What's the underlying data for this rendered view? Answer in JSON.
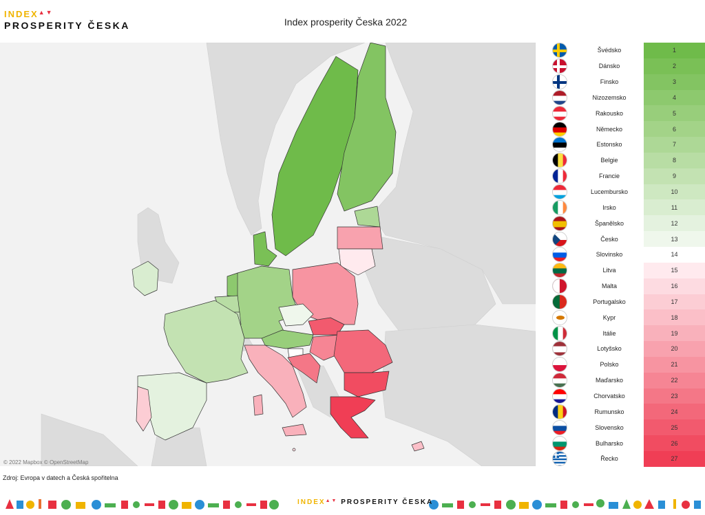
{
  "logo": {
    "line1": "INDEX",
    "line2": "PROSPERITY ČESKA"
  },
  "title": "Index prosperity Česka 2022",
  "map_attribution": "© 2022 Mapbox © OpenStreetMap",
  "source": "Zdroj: Evropa v datech a Česká spořitelna",
  "colors": {
    "best": "#6dbb4a",
    "neutral": "#ffffff",
    "worst": "#f24058",
    "nonEU": "#dcdcdc",
    "sea": "#f2f2f2"
  },
  "ranking": [
    {
      "country": "Švédsko",
      "rank": 1,
      "color": "#6fbb4a",
      "flag": "se"
    },
    {
      "country": "Dánsko",
      "rank": 2,
      "color": "#7ac056",
      "flag": "dk"
    },
    {
      "country": "Finsko",
      "rank": 3,
      "color": "#83c462",
      "flag": "fi"
    },
    {
      "country": "Nizozemsko",
      "rank": 4,
      "color": "#8dc96e",
      "flag": "nl"
    },
    {
      "country": "Rakousko",
      "rank": 5,
      "color": "#98ce7b",
      "flag": "at"
    },
    {
      "country": "Německo",
      "rank": 6,
      "color": "#a3d388",
      "flag": "de"
    },
    {
      "country": "Estonsko",
      "rank": 7,
      "color": "#add896",
      "flag": "ee"
    },
    {
      "country": "Belgie",
      "rank": 8,
      "color": "#b8dda4",
      "flag": "be"
    },
    {
      "country": "Francie",
      "rank": 9,
      "color": "#c3e2b2",
      "flag": "fr"
    },
    {
      "country": "Lucembursko",
      "rank": 10,
      "color": "#cee8c1",
      "flag": "lu"
    },
    {
      "country": "Irsko",
      "rank": 11,
      "color": "#d9edd0",
      "flag": "ie"
    },
    {
      "country": "Španělsko",
      "rank": 12,
      "color": "#e4f2df",
      "flag": "es"
    },
    {
      "country": "Česko",
      "rank": 13,
      "color": "#eff7ec",
      "flag": "cz"
    },
    {
      "country": "Slovinsko",
      "rank": 14,
      "color": "#ffffff",
      "flag": "si"
    },
    {
      "country": "Litva",
      "rank": 15,
      "color": "#ffeaee",
      "flag": "lt"
    },
    {
      "country": "Malta",
      "rank": 16,
      "color": "#fddbe1",
      "flag": "mt"
    },
    {
      "country": "Portugalsko",
      "rank": 17,
      "color": "#fccdd4",
      "flag": "pt"
    },
    {
      "country": "Kypr",
      "rank": 18,
      "color": "#fbbfc8",
      "flag": "cy"
    },
    {
      "country": "Itálie",
      "rank": 19,
      "color": "#f9b1bb",
      "flag": "it"
    },
    {
      "country": "Lotyšsko",
      "rank": 20,
      "color": "#f8a2ae",
      "flag": "lv"
    },
    {
      "country": "Polsko",
      "rank": 21,
      "color": "#f794a1",
      "flag": "pl"
    },
    {
      "country": "Maďarsko",
      "rank": 22,
      "color": "#f68594",
      "flag": "hu"
    },
    {
      "country": "Chorvatsko",
      "rank": 23,
      "color": "#f47787",
      "flag": "hr"
    },
    {
      "country": "Rumunsko",
      "rank": 24,
      "color": "#f3687a",
      "flag": "ro"
    },
    {
      "country": "Slovensko",
      "rank": 25,
      "color": "#f25a6e",
      "flag": "sk"
    },
    {
      "country": "Bulharsko",
      "rank": 26,
      "color": "#f14c61",
      "flag": "bg"
    },
    {
      "country": "Řecko",
      "rank": 27,
      "color": "#f03e55",
      "flag": "gr"
    }
  ],
  "footer": {
    "logo_part1": "INDEX",
    "logo_part2": "PROSPERITY ČESKA"
  }
}
